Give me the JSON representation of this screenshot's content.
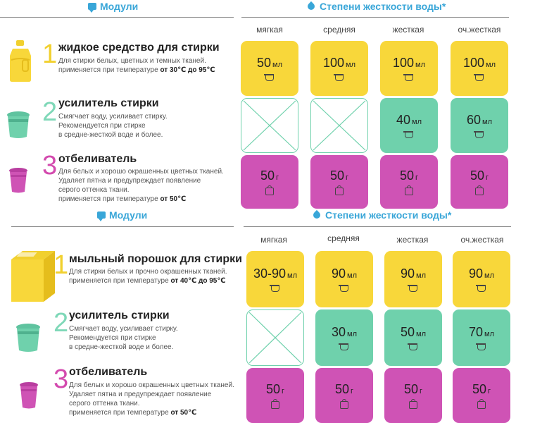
{
  "top": {
    "modules_title": "Модули",
    "hardness_title": "Степени жесткости воды*",
    "columns": [
      "мягкая",
      "средняя",
      "жесткая",
      "оч.жесткая"
    ],
    "products": [
      {
        "num": "1",
        "title": "жидкое средство для стирки",
        "desc1": "Для стирки белых, цветных и темных тканей.",
        "desc2": "применяется при температуре ",
        "desc2b": "от 30℃ до 95℃",
        "desc3": "",
        "desc4": "",
        "desc4b": "",
        "icon": "liquid-detergent-bottle-icon"
      },
      {
        "num": "2",
        "title": "усилитель стирки",
        "desc1": "Смягчает воду, усиливает стирку.",
        "desc2": "Рекомендуется при стирке",
        "desc2b": "",
        "desc3": "в средне-жесткой воде и более.",
        "desc4": "",
        "desc4b": "",
        "icon": "booster-tub-icon"
      },
      {
        "num": "3",
        "title": "отбеливатель",
        "desc1": "Для белых и хорошо окрашенных цветных тканей.",
        "desc2": "Удаляет пятна и предупреждает появление",
        "desc2b": "",
        "desc3": "серого оттенка ткани.",
        "desc4": "применяется при температуре ",
        "desc4b": "от 50℃",
        "icon": "bleach-cup-icon"
      }
    ],
    "rows": [
      [
        {
          "v": "50",
          "u": "мл"
        },
        {
          "v": "100",
          "u": "мл"
        },
        {
          "v": "100",
          "u": "мл"
        },
        {
          "v": "100",
          "u": "мл"
        }
      ],
      [
        null,
        null,
        {
          "v": "40",
          "u": "мл"
        },
        {
          "v": "60",
          "u": "мл"
        }
      ],
      [
        {
          "v": "50",
          "u": "г"
        },
        {
          "v": "50",
          "u": "г"
        },
        {
          "v": "50",
          "u": "г"
        },
        {
          "v": "50",
          "u": "г"
        }
      ]
    ]
  },
  "bottom": {
    "modules_title": "Модули",
    "hardness_title": "Степени жесткости воды*",
    "columns": [
      "мягкая",
      "средняя",
      "жесткая",
      "оч.жесткая"
    ],
    "products": [
      {
        "num": "1",
        "title": "мыльный порошок для стирки",
        "desc1": "Для стирки белых и прочно окрашенных тканей.",
        "desc2": "применяется при температуре ",
        "desc2b": "от 40℃ до 95℃",
        "desc3": "",
        "desc4": "",
        "desc4b": "",
        "icon": "soap-powder-box-icon"
      },
      {
        "num": "2",
        "title": "усилитель стирки",
        "desc1": "Смягчает воду, усиливает стирку.",
        "desc2": "Рекомендуется при стирке",
        "desc2b": "",
        "desc3": "в средне-жесткой воде и более.",
        "desc4": "",
        "desc4b": "",
        "icon": "booster-tub-icon"
      },
      {
        "num": "3",
        "title": "отбеливатель",
        "desc1": "Для белых и хорошо окрашенных цветных тканей.",
        "desc2": "Удаляет пятна и предупреждает появление",
        "desc2b": "",
        "desc3": "серого оттенка ткани.",
        "desc4": "применяется при температуре ",
        "desc4b": "от 50℃",
        "icon": "bleach-cup-icon"
      }
    ],
    "rows": [
      [
        {
          "v": "30-90",
          "u": "мл"
        },
        {
          "v": "90",
          "u": "мл"
        },
        {
          "v": "90",
          "u": "мл"
        },
        {
          "v": "90",
          "u": "мл"
        }
      ],
      [
        null,
        {
          "v": "30",
          "u": "мл"
        },
        {
          "v": "50",
          "u": "мл"
        },
        {
          "v": "70",
          "u": "мл"
        }
      ],
      [
        {
          "v": "50",
          "u": "г"
        },
        {
          "v": "50",
          "u": "г"
        },
        {
          "v": "50",
          "u": "г"
        },
        {
          "v": "50",
          "u": "г"
        }
      ]
    ]
  },
  "colors": {
    "yellow": "#f8d73a",
    "teal": "#6fd1ac",
    "magenta": "#cf53b5",
    "accent": "#39a6d8"
  }
}
